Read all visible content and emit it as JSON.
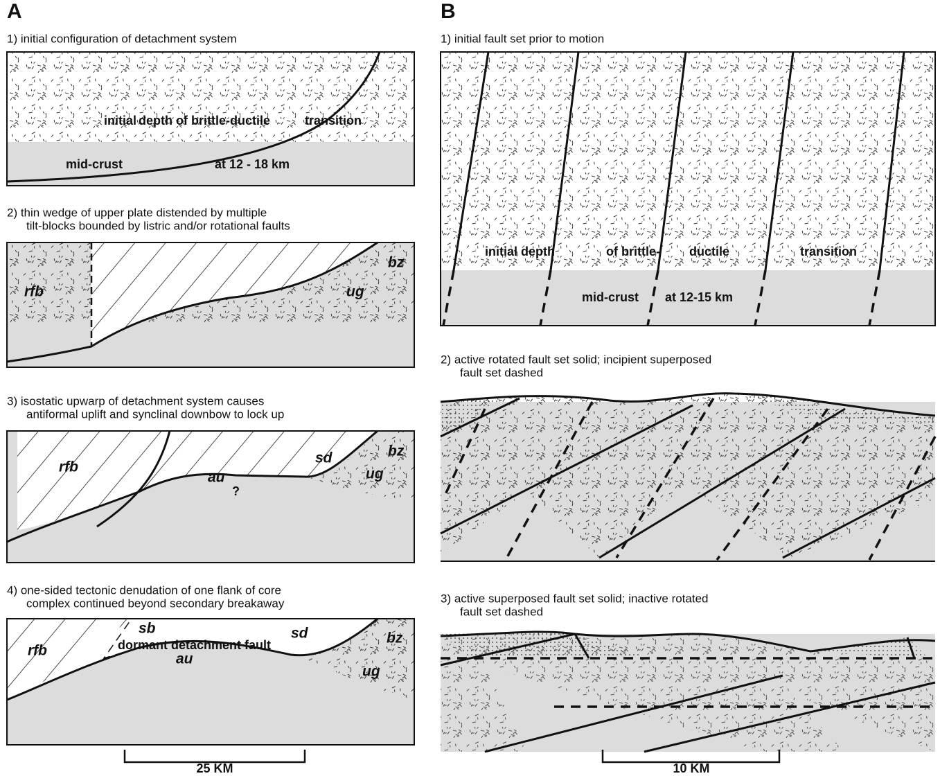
{
  "panel_a": {
    "label": "A",
    "steps": [
      {
        "caption": [
          "1)  initial configuration of detachment system"
        ],
        "labels": [
          "initial",
          "depth of brittle-ductile",
          "transition",
          "mid-crust",
          "at 12 - 18 km"
        ]
      },
      {
        "caption": [
          "2)  thin wedge of upper plate distended by multiple",
          "tilt-blocks bounded by listric and/or rotational faults"
        ],
        "labels": [
          "rfb",
          "ug",
          "bz"
        ]
      },
      {
        "caption": [
          "3)  isostatic upwarp of detachment system causes",
          "antiformal uplift and synclinal downbow to lock up"
        ],
        "labels": [
          "rfb",
          "sd",
          "bz",
          "au",
          "ug",
          "?"
        ]
      },
      {
        "caption": [
          "4)  one-sided tectonic denudation of one flank of core",
          "complex continued beyond secondary breakaway"
        ],
        "labels": [
          "rfb",
          "sb",
          "dormant detachment fault",
          "sd",
          "bz",
          "au",
          "ug"
        ]
      }
    ],
    "scale_bar": "25 KM"
  },
  "panel_b": {
    "label": "B",
    "steps": [
      {
        "caption": [
          "1)  initial fault set prior to motion"
        ],
        "labels": [
          "initial depth",
          "of brittle-",
          "ductile",
          "transition",
          "mid-crust",
          "at 12-15 km"
        ]
      },
      {
        "caption": [
          "2)  active rotated fault set solid; incipient superposed",
          "fault set dashed"
        ],
        "labels": []
      },
      {
        "caption": [
          "3)  active superposed fault set solid; inactive rotated",
          "fault set dashed"
        ],
        "labels": []
      }
    ],
    "scale_bar": "10 KM"
  }
}
